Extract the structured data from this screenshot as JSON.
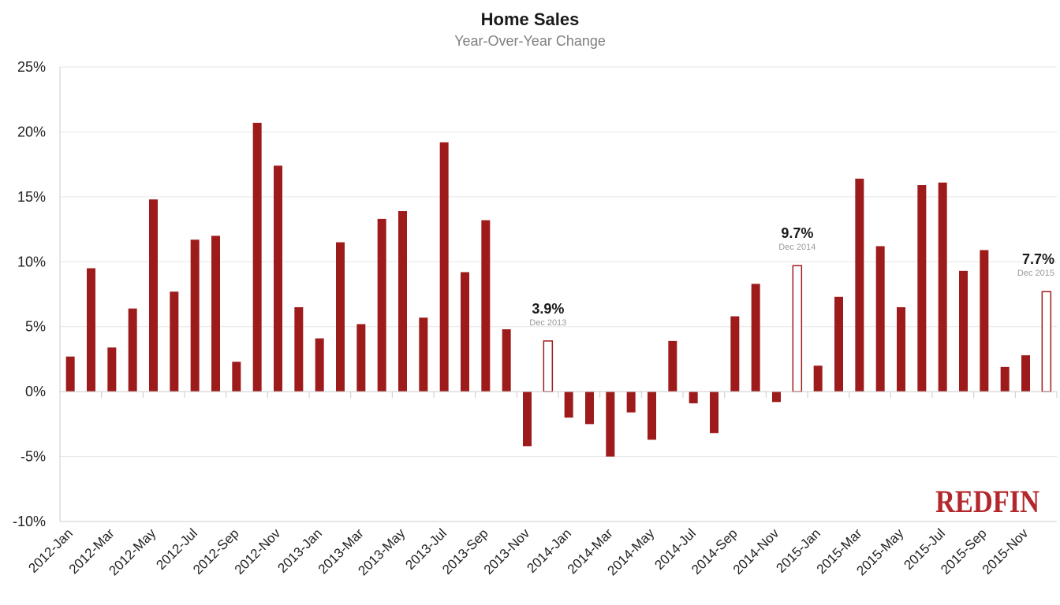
{
  "colors": {
    "bar": "#9e1b1b",
    "highlight_fill": "#ffffff",
    "grid": "#e6e6e6",
    "axis": "#cccccc",
    "logo": "#b3282d"
  },
  "brand": {
    "logo_text": "REDFIN"
  },
  "chart_data": {
    "type": "bar",
    "title": "Home Sales",
    "subtitle": "Year-Over-Year Change",
    "xlabel": "",
    "ylabel": "",
    "ylim": [
      -10,
      25
    ],
    "yticks": [
      25,
      20,
      15,
      10,
      5,
      0,
      -5,
      -10
    ],
    "ytick_labels": [
      "25%",
      "20%",
      "15%",
      "10%",
      "5%",
      "0%",
      "-5%",
      "-10%"
    ],
    "grid": true,
    "legend": "none",
    "categories": [
      "2012-Jan",
      "2012-Feb",
      "2012-Mar",
      "2012-Apr",
      "2012-May",
      "2012-Jun",
      "2012-Jul",
      "2012-Aug",
      "2012-Sep",
      "2012-Oct",
      "2012-Nov",
      "2012-Dec",
      "2013-Jan",
      "2013-Feb",
      "2013-Mar",
      "2013-Apr",
      "2013-May",
      "2013-Jun",
      "2013-Jul",
      "2013-Aug",
      "2013-Sep",
      "2013-Oct",
      "2013-Nov",
      "2013-Dec",
      "2014-Jan",
      "2014-Feb",
      "2014-Mar",
      "2014-Apr",
      "2014-May",
      "2014-Jun",
      "2014-Jul",
      "2014-Aug",
      "2014-Sep",
      "2014-Oct",
      "2014-Nov",
      "2014-Dec",
      "2015-Jan",
      "2015-Feb",
      "2015-Mar",
      "2015-Apr",
      "2015-May",
      "2015-Jun",
      "2015-Jul",
      "2015-Aug",
      "2015-Sep",
      "2015-Oct",
      "2015-Nov",
      "2015-Dec"
    ],
    "tick_labels": [
      "2012-Jan",
      "2012-Mar",
      "2012-May",
      "2012-Jul",
      "2012-Sep",
      "2012-Nov",
      "2013-Jan",
      "2013-Mar",
      "2013-May",
      "2013-Jul",
      "2013-Sep",
      "2013-Nov",
      "2014-Jan",
      "2014-Mar",
      "2014-May",
      "2014-Jul",
      "2014-Sep",
      "2014-Nov",
      "2015-Jan",
      "2015-Mar",
      "2015-May",
      "2015-Jul",
      "2015-Sep",
      "2015-Nov"
    ],
    "values": [
      2.7,
      9.5,
      3.4,
      6.4,
      14.8,
      7.7,
      11.7,
      12.0,
      2.3,
      20.7,
      17.4,
      6.5,
      4.1,
      11.5,
      5.2,
      13.3,
      13.9,
      5.7,
      19.2,
      9.2,
      13.2,
      4.8,
      -4.2,
      3.9,
      -2.0,
      -2.5,
      -5.0,
      -1.6,
      -3.7,
      3.9,
      -0.9,
      -3.2,
      5.8,
      8.3,
      -0.8,
      9.7,
      2.0,
      7.3,
      16.4,
      11.2,
      6.5,
      15.9,
      16.1,
      9.3,
      10.9,
      1.9,
      2.8,
      7.7
    ],
    "highlighted": [
      "2013-Dec",
      "2014-Dec",
      "2015-Dec"
    ],
    "annotations": [
      {
        "category": "2013-Dec",
        "value_label": "3.9%",
        "date_label": "Dec 2013"
      },
      {
        "category": "2014-Dec",
        "value_label": "9.7%",
        "date_label": "Dec 2014"
      },
      {
        "category": "2015-Dec",
        "value_label": "7.7%",
        "date_label": "Dec 2015"
      }
    ]
  }
}
